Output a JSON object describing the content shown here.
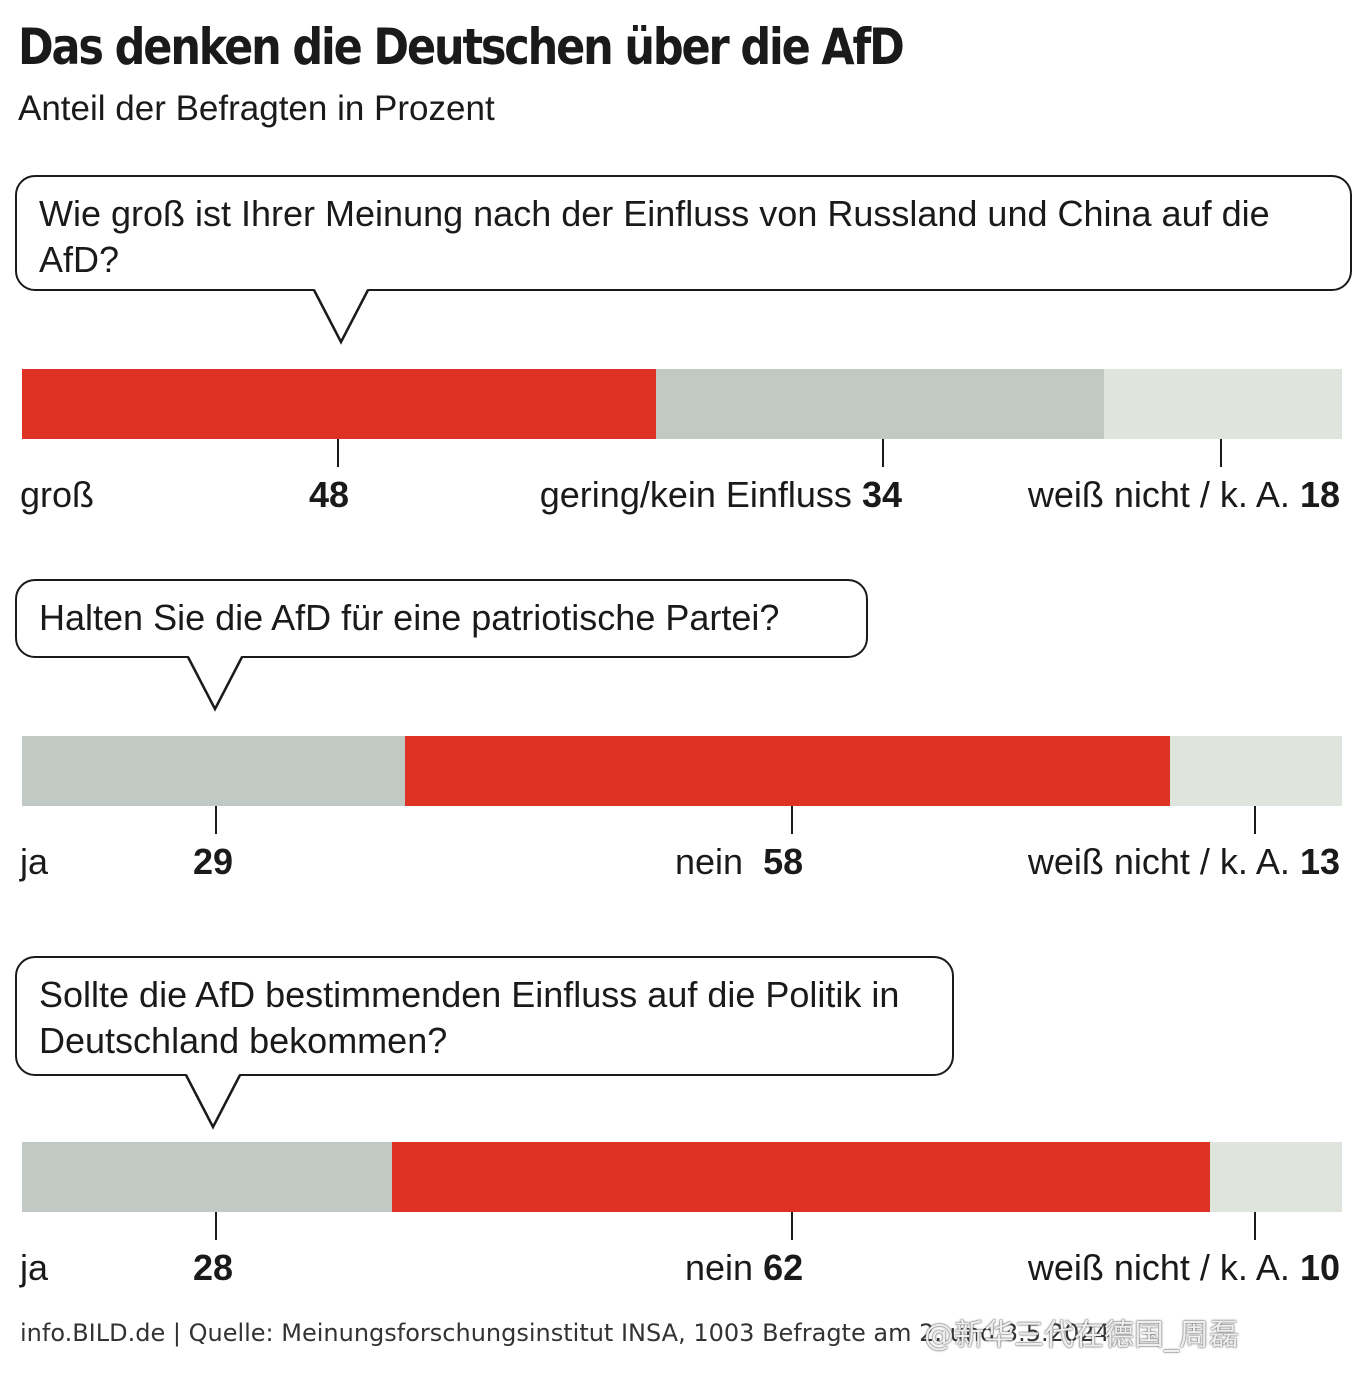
{
  "header": {
    "title": "Das denken die Deutschen über die AfD",
    "subtitle": "Anteil der Befragten in Prozent"
  },
  "colors": {
    "red": "#de3324",
    "gray": "#c1c9c4",
    "light": "#dfe4dc"
  },
  "chart_data": [
    {
      "type": "bar",
      "orientation": "horizontal-stacked",
      "title": "Wie groß ist Ihrer Meinung nach der Einfluss von Russland und China auf die AfD?",
      "categories": [
        "groß",
        "gering/kein Einfluss",
        "weiß nicht / k. A."
      ],
      "values": [
        48,
        34,
        18
      ],
      "colors": [
        "#de3324",
        "#c1c9c4",
        "#dfe4dc"
      ]
    },
    {
      "type": "bar",
      "orientation": "horizontal-stacked",
      "title": "Halten Sie die AfD für eine patriotische Partei?",
      "categories": [
        "ja",
        "nein",
        "weiß nicht / k. A."
      ],
      "values": [
        29,
        58,
        13
      ],
      "colors": [
        "#c1c9c4",
        "#de3324",
        "#dfe4dc"
      ]
    },
    {
      "type": "bar",
      "orientation": "horizontal-stacked",
      "title": "Sollte die AfD bestimmenden Einfluss auf die Politik in Deutschland bekommen?",
      "categories": [
        "ja",
        "nein",
        "weiß nicht / k. A."
      ],
      "values": [
        28,
        62,
        10
      ],
      "colors": [
        "#c1c9c4",
        "#de3324",
        "#dfe4dc"
      ]
    }
  ],
  "footer": {
    "text": "info.BILD.de | Quelle: Meinungsforschungsinstitut INSA, 1003 Befragte am 2. und 3.5.2024"
  },
  "watermark": {
    "text": "@新华三代在德国_周磊"
  }
}
